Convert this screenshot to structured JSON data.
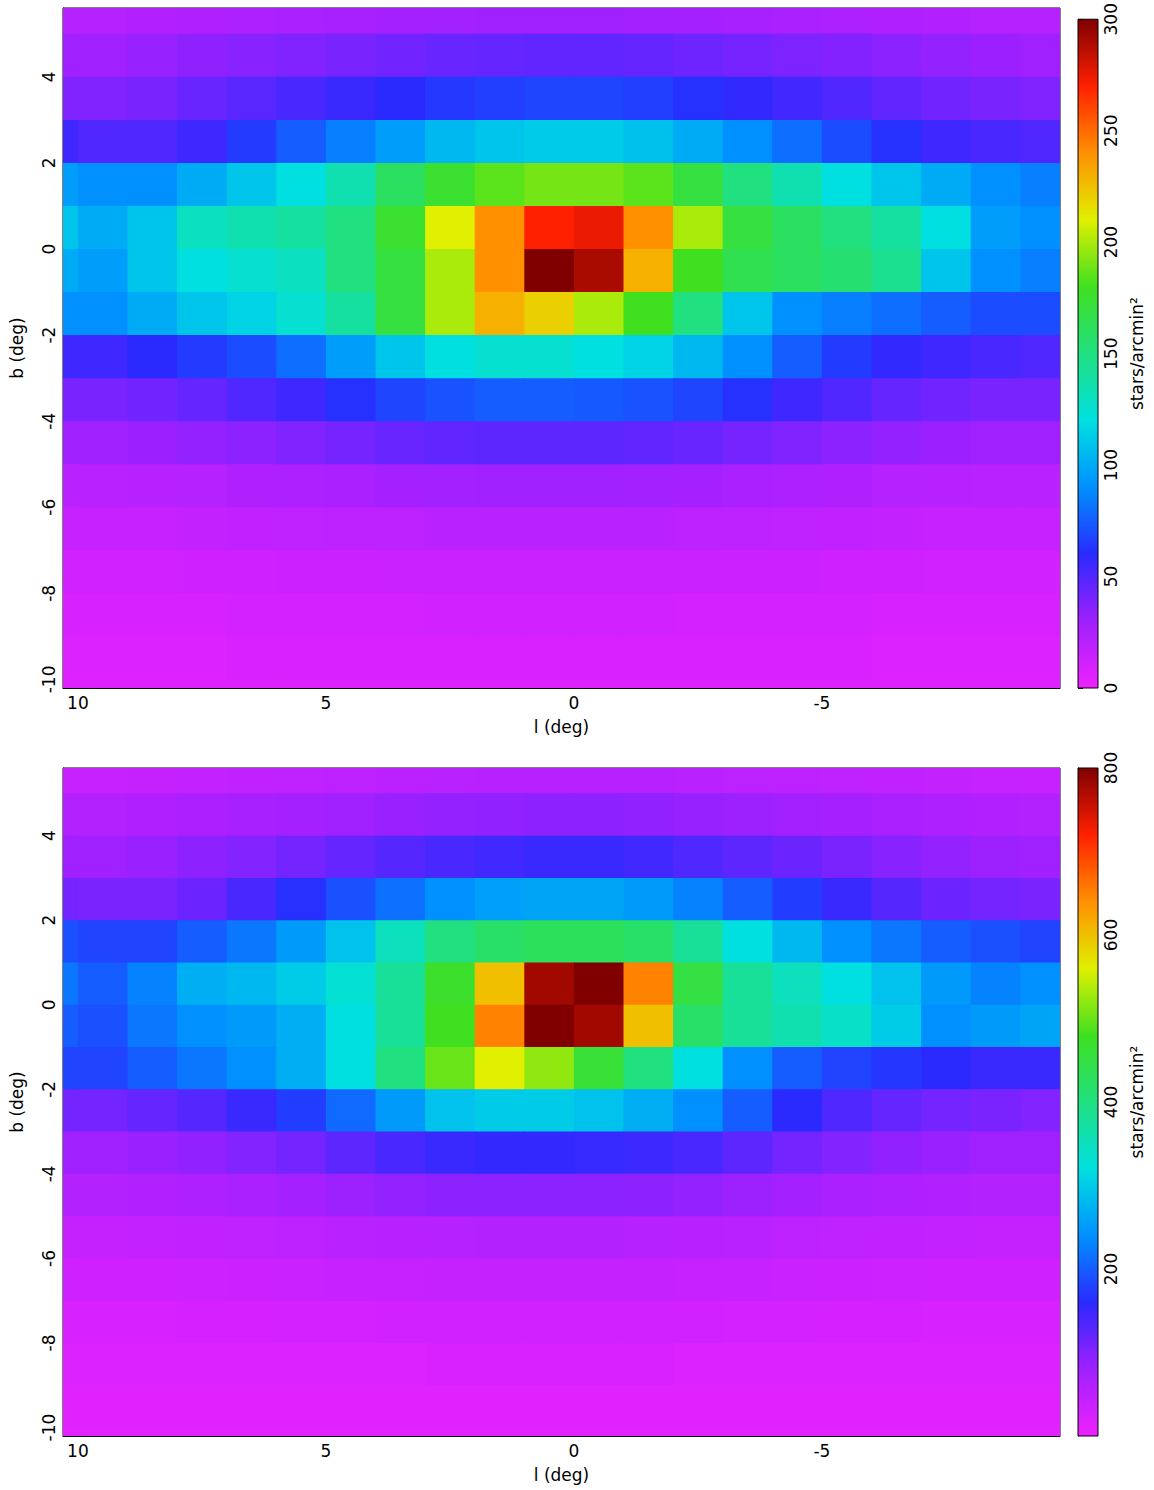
{
  "chart_data": [
    {
      "type": "heatmap",
      "xlabel": "l (deg)",
      "ylabel": "b (deg)",
      "xlim": [
        10.3,
        -9.8
      ],
      "xticks": [
        10,
        5,
        0,
        -5
      ],
      "ylim": [
        -10.2,
        5.6
      ],
      "yticks": [
        -10,
        -8,
        -6,
        -4,
        -2,
        0,
        2,
        4
      ],
      "grid": false,
      "l": [
        10.5,
        9.5,
        8.5,
        7.5,
        6.5,
        5.5,
        4.5,
        3.5,
        2.5,
        1.5,
        0.5,
        -0.5,
        -1.5,
        -2.5,
        -3.5,
        -4.5,
        -5.5,
        -6.5,
        -7.5,
        -8.5,
        -9.5
      ],
      "b": [
        5.5,
        4.5,
        3.5,
        2.5,
        1.5,
        0.5,
        -0.5,
        -1.5,
        -2.5,
        -3.5,
        -4.5,
        -5.5,
        -6.5,
        -7.5,
        -8.5,
        -9.5,
        -10.5
      ],
      "cells": [
        [
          22,
          22,
          23,
          24,
          25,
          26,
          27,
          28,
          29,
          30,
          30,
          30,
          29,
          28,
          27,
          26,
          25,
          24,
          23,
          22,
          22
        ],
        [
          30,
          30,
          32,
          34,
          36,
          38,
          40,
          42,
          44,
          45,
          46,
          46,
          45,
          43,
          41,
          39,
          37,
          35,
          33,
          31,
          30
        ],
        [
          38,
          38,
          40,
          44,
          48,
          52,
          56,
          60,
          64,
          66,
          68,
          68,
          66,
          62,
          58,
          54,
          50,
          46,
          42,
          40,
          38
        ],
        [
          55,
          50,
          50,
          55,
          65,
          75,
          85,
          95,
          105,
          110,
          112,
          112,
          108,
          100,
          90,
          80,
          70,
          62,
          55,
          52,
          50
        ],
        [
          95,
          90,
          90,
          100,
          110,
          120,
          135,
          160,
          175,
          185,
          190,
          190,
          185,
          170,
          150,
          135,
          120,
          110,
          100,
          90,
          85
        ],
        [
          110,
          100,
          110,
          130,
          135,
          140,
          150,
          175,
          210,
          240,
          270,
          275,
          240,
          200,
          170,
          160,
          150,
          140,
          120,
          95,
          90
        ],
        [
          100,
          95,
          110,
          120,
          125,
          130,
          150,
          170,
          200,
          240,
          300,
          290,
          230,
          180,
          165,
          160,
          155,
          145,
          110,
          90,
          85
        ],
        [
          90,
          90,
          100,
          110,
          115,
          125,
          140,
          170,
          200,
          230,
          220,
          200,
          180,
          150,
          110,
          90,
          85,
          80,
          75,
          70,
          70
        ],
        [
          55,
          55,
          60,
          65,
          70,
          80,
          95,
          110,
          120,
          125,
          125,
          120,
          115,
          105,
          90,
          75,
          65,
          58,
          55,
          52,
          50
        ],
        [
          40,
          40,
          42,
          45,
          50,
          55,
          62,
          68,
          72,
          75,
          75,
          74,
          72,
          68,
          62,
          55,
          50,
          45,
          42,
          40,
          40
        ],
        [
          30,
          30,
          31,
          33,
          35,
          38,
          41,
          44,
          46,
          47,
          47,
          47,
          46,
          44,
          41,
          38,
          35,
          33,
          31,
          30,
          30
        ],
        [
          20,
          20,
          21,
          22,
          24,
          25,
          26,
          28,
          29,
          30,
          30,
          30,
          29,
          28,
          26,
          25,
          24,
          22,
          21,
          20,
          20
        ],
        [
          15,
          15,
          15,
          16,
          17,
          18,
          19,
          19,
          20,
          20,
          20,
          20,
          20,
          19,
          19,
          18,
          17,
          16,
          15,
          15,
          15
        ],
        [
          11,
          11,
          11,
          12,
          12,
          13,
          13,
          14,
          14,
          14,
          14,
          14,
          14,
          14,
          13,
          13,
          12,
          12,
          11,
          11,
          11
        ],
        [
          9,
          9,
          9,
          9,
          10,
          10,
          10,
          10,
          11,
          11,
          11,
          11,
          11,
          10,
          10,
          10,
          10,
          9,
          9,
          9,
          9
        ],
        [
          7,
          7,
          7,
          7,
          8,
          8,
          8,
          8,
          8,
          8,
          8,
          8,
          8,
          8,
          8,
          8,
          8,
          7,
          7,
          7,
          7
        ],
        [
          6,
          6,
          6,
          6,
          6,
          6,
          6,
          6,
          6,
          6,
          6,
          6,
          6,
          6,
          6,
          6,
          6,
          6,
          6,
          6,
          6
        ]
      ],
      "colorbar": {
        "label": "stars/arcmin²",
        "range": [
          0,
          300
        ],
        "ticks": [
          0,
          50,
          100,
          150,
          200,
          250,
          300
        ]
      }
    },
    {
      "type": "heatmap",
      "xlabel": "l (deg)",
      "ylabel": "b (deg)",
      "xlim": [
        10.3,
        -9.8
      ],
      "xticks": [
        10,
        5,
        0,
        -5
      ],
      "ylim": [
        -10.2,
        5.6
      ],
      "yticks": [
        -10,
        -8,
        -6,
        -4,
        -2,
        0,
        2,
        4
      ],
      "grid": false,
      "l": [
        10.5,
        9.5,
        8.5,
        7.5,
        6.5,
        5.5,
        4.5,
        3.5,
        2.5,
        1.5,
        0.5,
        -0.5,
        -1.5,
        -2.5,
        -3.5,
        -4.5,
        -5.5,
        -6.5,
        -7.5,
        -8.5,
        -9.5
      ],
      "b": [
        5.5,
        4.5,
        3.5,
        2.5,
        1.5,
        0.5,
        -0.5,
        -1.5,
        -2.5,
        -3.5,
        -4.5,
        -5.5,
        -6.5,
        -7.5,
        -8.5,
        -9.5,
        -10.5
      ],
      "cells": [
        [
          40,
          40,
          42,
          44,
          46,
          48,
          50,
          52,
          54,
          55,
          56,
          56,
          55,
          53,
          51,
          49,
          47,
          45,
          43,
          41,
          40
        ],
        [
          60,
          60,
          64,
          68,
          72,
          76,
          80,
          84,
          88,
          90,
          92,
          92,
          90,
          86,
          82,
          78,
          74,
          70,
          66,
          62,
          60
        ],
        [
          80,
          80,
          85,
          92,
          100,
          110,
          120,
          130,
          140,
          145,
          150,
          150,
          145,
          135,
          125,
          115,
          105,
          96,
          88,
          82,
          80
        ],
        [
          110,
          105,
          105,
          115,
          140,
          165,
          190,
          215,
          240,
          255,
          260,
          260,
          250,
          230,
          200,
          175,
          150,
          130,
          115,
          110,
          105
        ],
        [
          190,
          180,
          180,
          200,
          220,
          250,
          290,
          350,
          400,
          420,
          430,
          430,
          420,
          380,
          320,
          280,
          240,
          220,
          200,
          190,
          180
        ],
        [
          220,
          200,
          230,
          270,
          280,
          300,
          330,
          380,
          470,
          600,
          780,
          800,
          650,
          450,
          380,
          350,
          320,
          290,
          250,
          230,
          240
        ],
        [
          200,
          190,
          220,
          240,
          250,
          270,
          320,
          380,
          480,
          650,
          800,
          780,
          600,
          420,
          380,
          360,
          340,
          300,
          240,
          250,
          260
        ],
        [
          180,
          180,
          200,
          220,
          240,
          270,
          320,
          400,
          500,
          560,
          520,
          460,
          400,
          320,
          240,
          200,
          180,
          170,
          160,
          150,
          150
        ],
        [
          110,
          110,
          120,
          130,
          150,
          175,
          210,
          250,
          290,
          300,
          300,
          290,
          270,
          240,
          200,
          160,
          135,
          120,
          110,
          105,
          100
        ],
        [
          80,
          80,
          84,
          90,
          100,
          110,
          125,
          140,
          150,
          155,
          155,
          152,
          148,
          140,
          125,
          110,
          100,
          90,
          84,
          80,
          80
        ],
        [
          60,
          60,
          62,
          66,
          70,
          76,
          82,
          88,
          92,
          94,
          94,
          94,
          92,
          88,
          82,
          76,
          70,
          66,
          62,
          60,
          60
        ],
        [
          42,
          42,
          44,
          46,
          48,
          50,
          53,
          56,
          58,
          60,
          60,
          60,
          58,
          56,
          53,
          50,
          48,
          46,
          44,
          42,
          42
        ],
        [
          32,
          32,
          32,
          34,
          36,
          38,
          40,
          40,
          42,
          42,
          42,
          42,
          42,
          40,
          40,
          38,
          36,
          34,
          32,
          32,
          32
        ],
        [
          24,
          24,
          24,
          26,
          26,
          28,
          28,
          30,
          30,
          30,
          30,
          30,
          30,
          30,
          28,
          28,
          26,
          26,
          24,
          24,
          24
        ],
        [
          18,
          18,
          18,
          18,
          20,
          20,
          20,
          20,
          22,
          22,
          22,
          22,
          22,
          20,
          20,
          20,
          20,
          18,
          18,
          18,
          18
        ],
        [
          14,
          14,
          14,
          14,
          14,
          14,
          14,
          14,
          14,
          14,
          14,
          14,
          14,
          14,
          14,
          14,
          14,
          14,
          14,
          14,
          14
        ],
        [
          12,
          12,
          12,
          12,
          12,
          12,
          12,
          12,
          12,
          12,
          12,
          12,
          12,
          12,
          12,
          12,
          12,
          12,
          12,
          12,
          12
        ]
      ],
      "colorbar": {
        "label": "stars/arcmin²",
        "range": [
          0,
          800
        ],
        "ticks": [
          200,
          400,
          600,
          800
        ]
      }
    }
  ]
}
